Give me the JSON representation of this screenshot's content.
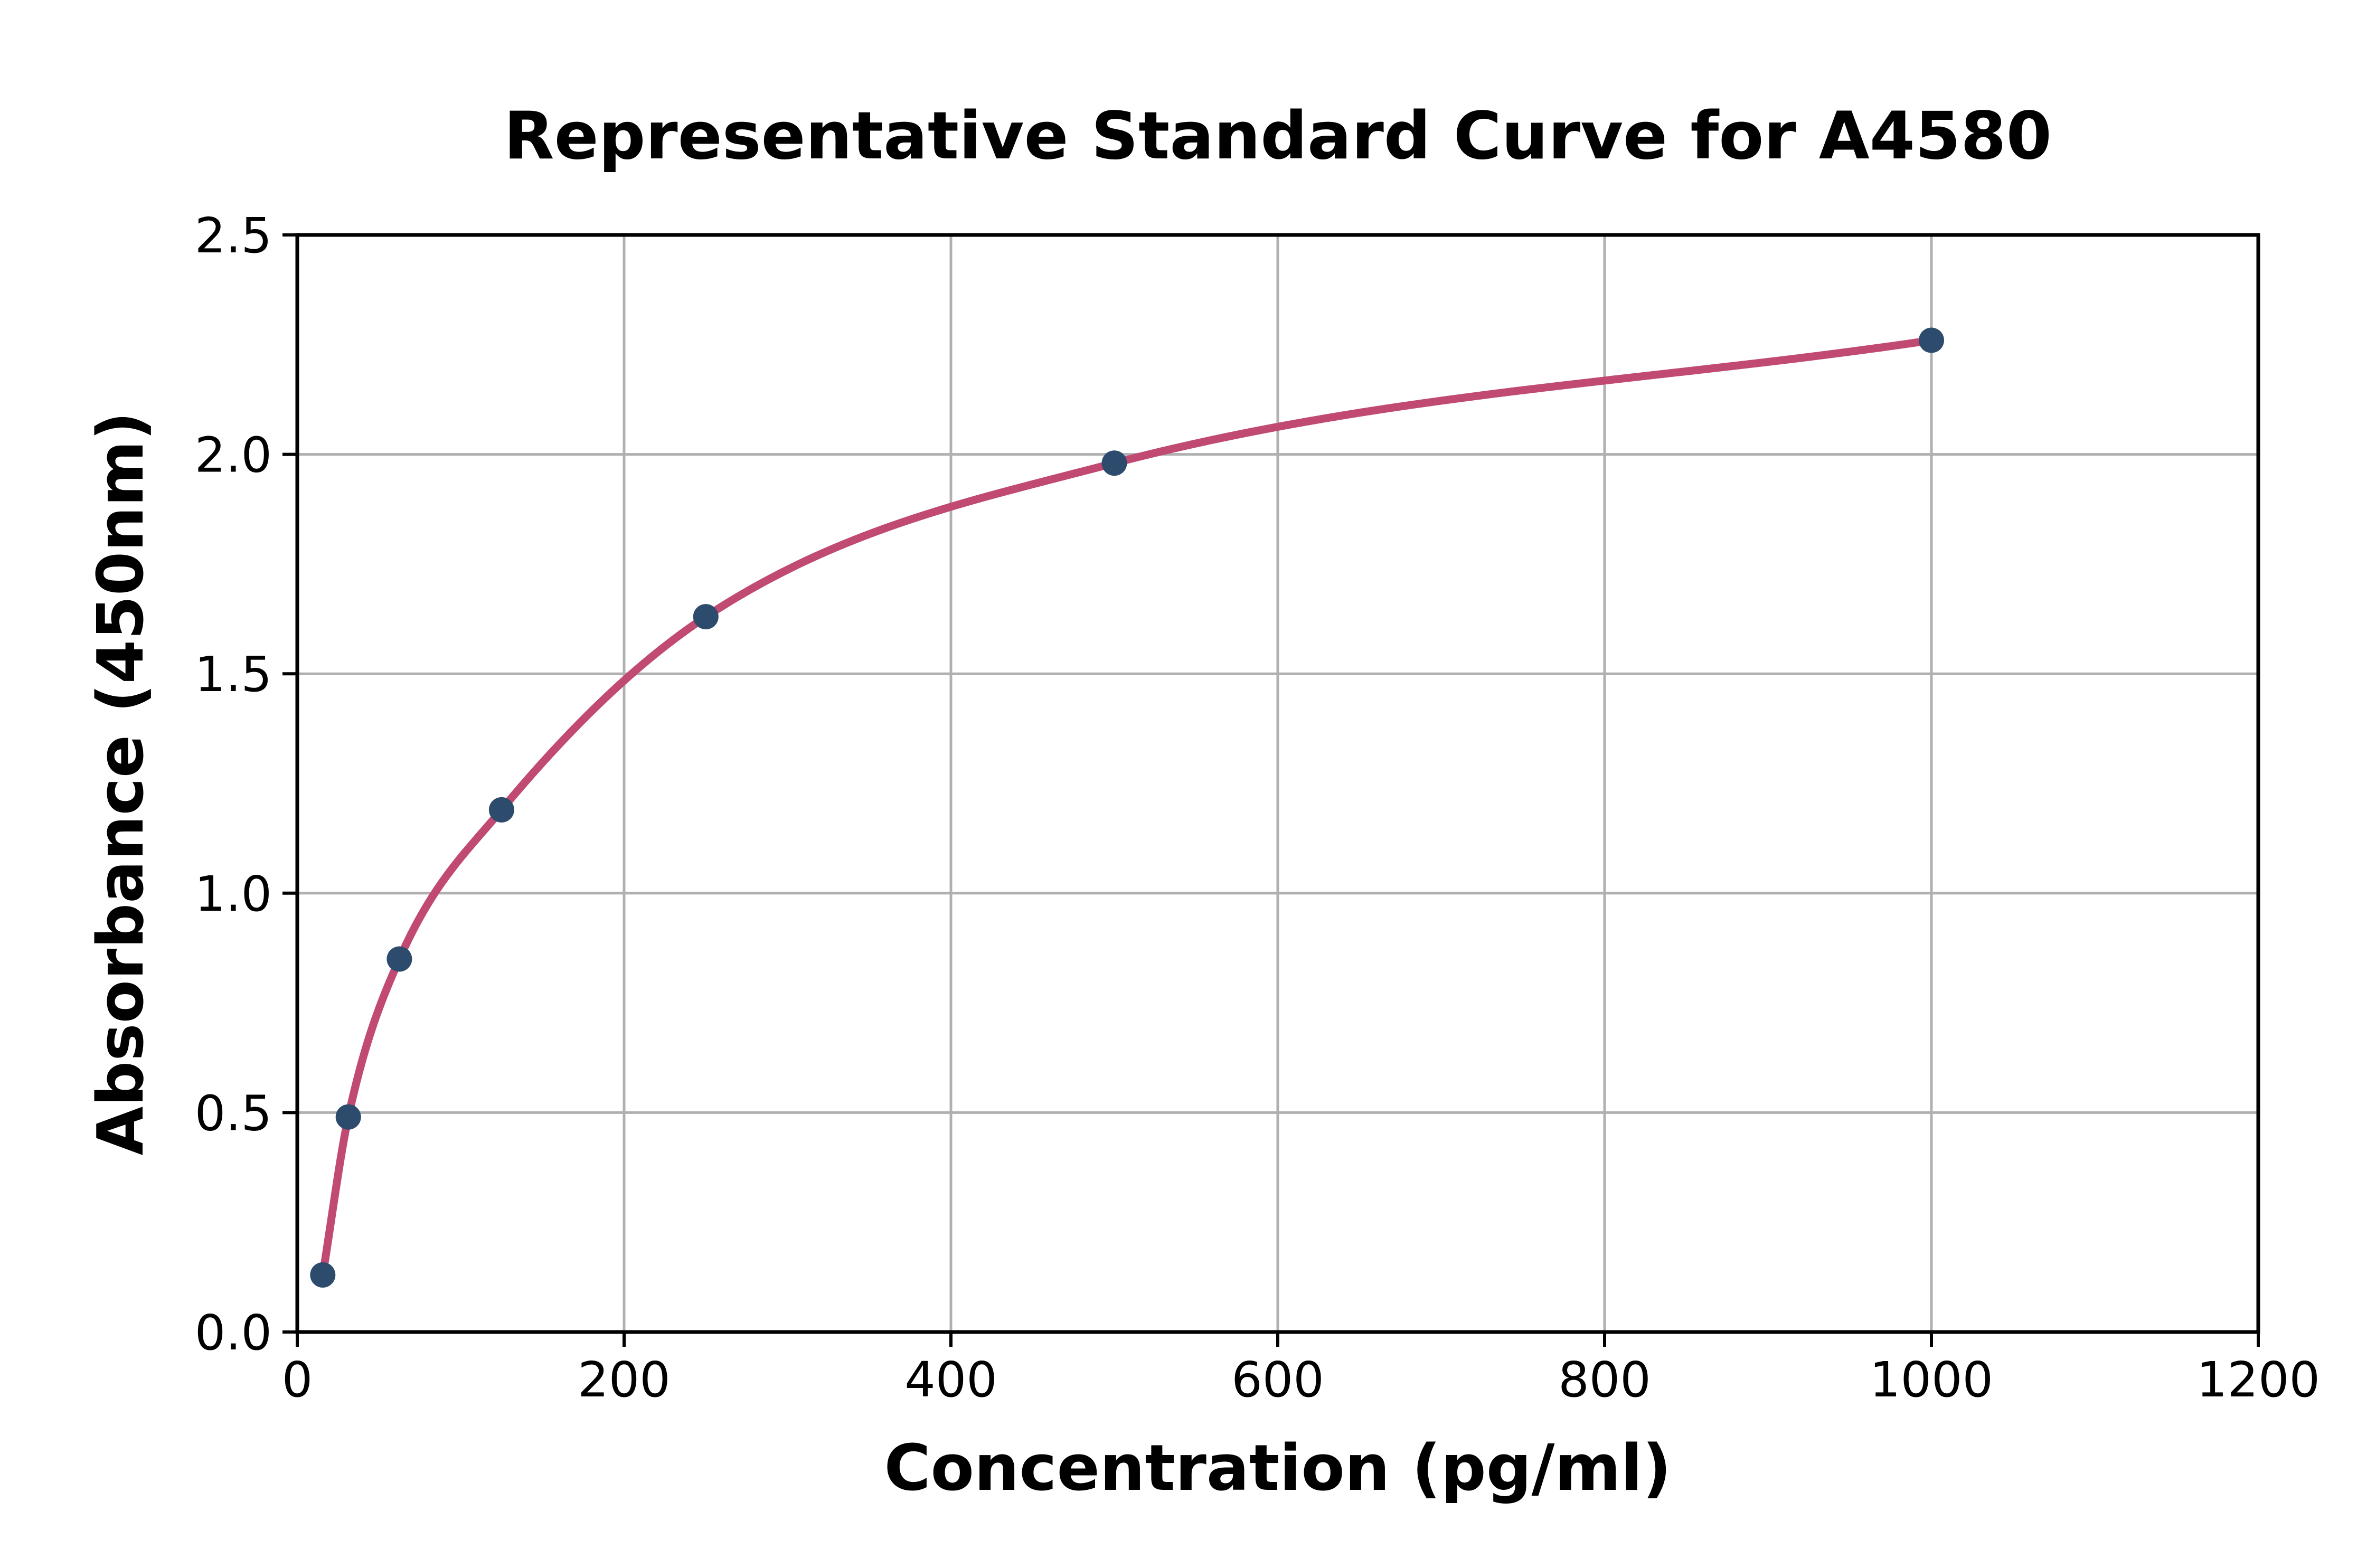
{
  "chart_data": {
    "type": "scatter",
    "title": "Representative Standard Curve for A4580",
    "xlabel": "Concentration (pg/ml)",
    "ylabel": "Absorbance (450nm)",
    "xlim": [
      0,
      1200
    ],
    "ylim": [
      0.0,
      2.5
    ],
    "x_ticks": [
      0,
      200,
      400,
      600,
      800,
      1000,
      1200
    ],
    "x_tick_labels": [
      "0",
      "200",
      "400",
      "600",
      "800",
      "1000",
      "1200"
    ],
    "y_ticks": [
      0.0,
      0.5,
      1.0,
      1.5,
      2.0,
      2.5
    ],
    "y_tick_labels": [
      "0.0",
      "0.5",
      "1.0",
      "1.5",
      "2.0",
      "2.5"
    ],
    "grid": true,
    "legend_position": "none",
    "series": [
      {
        "name": "standard-points",
        "type": "scatter",
        "marker": "circle",
        "color": "#2d4b6c",
        "x": [
          15.6,
          31.25,
          62.5,
          125,
          250,
          500,
          1000
        ],
        "y": [
          0.13,
          0.49,
          0.85,
          1.19,
          1.63,
          1.98,
          2.26
        ]
      },
      {
        "name": "fitted-curve",
        "type": "line",
        "interpolation": "monotone-cubic",
        "color": "#c04a72",
        "x": [
          15.6,
          31.25,
          62.5,
          125,
          250,
          500,
          1000
        ],
        "y": [
          0.13,
          0.49,
          0.85,
          1.19,
          1.63,
          1.98,
          2.26
        ]
      }
    ],
    "colors": {
      "grid": "#b0b0b0",
      "spine": "#000000",
      "text": "#000000",
      "background": "#ffffff"
    }
  }
}
